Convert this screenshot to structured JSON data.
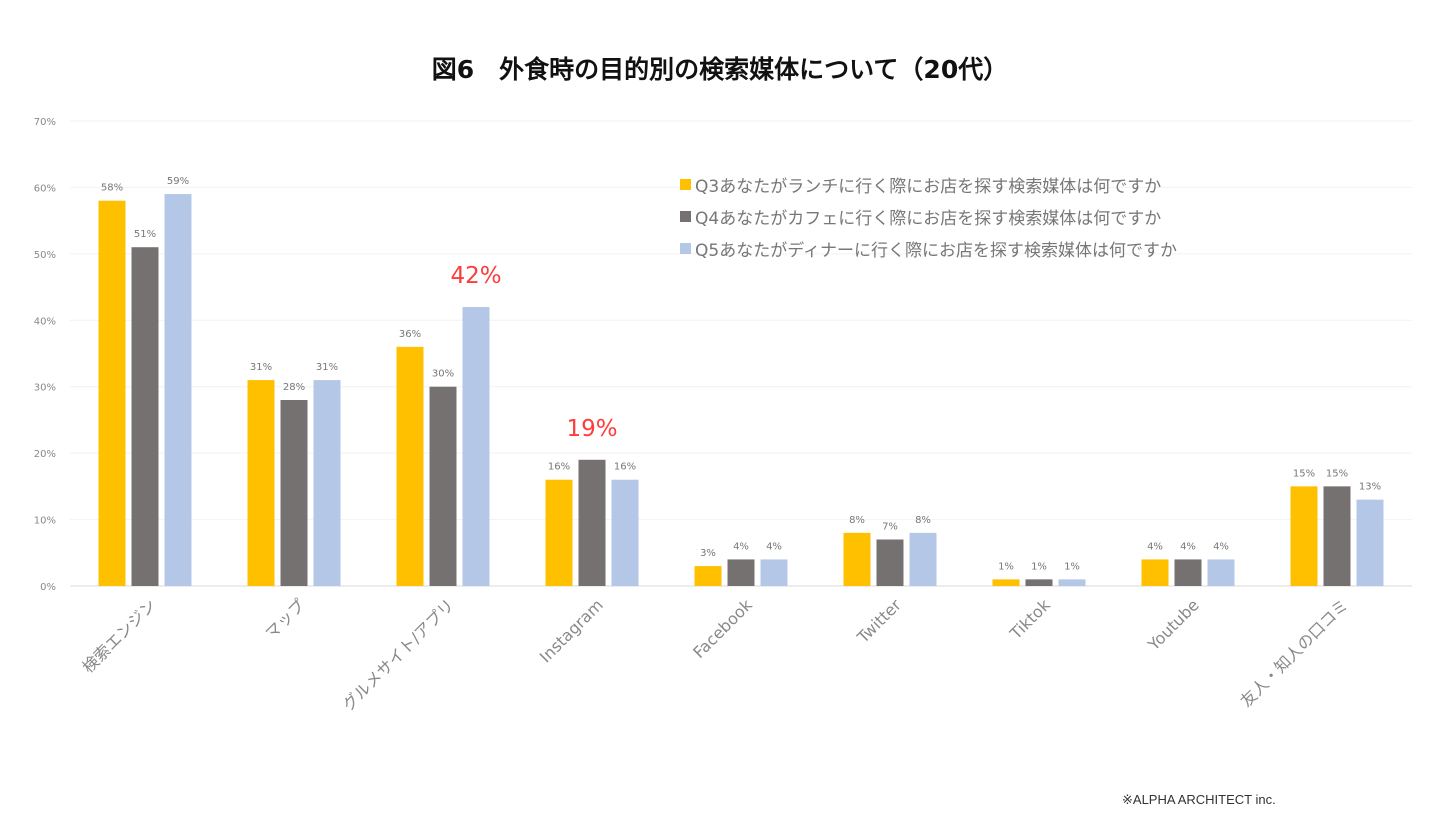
{
  "chart_data": {
    "type": "bar",
    "title": "図6　外食時の目的別の検索媒体について（20代）",
    "xlabel": "",
    "ylabel": "",
    "ylim": [
      0,
      70
    ],
    "yticks": [
      "0%",
      "10%",
      "20%",
      "30%",
      "40%",
      "50%",
      "60%",
      "70%"
    ],
    "grid": true,
    "legend_position": "top-right",
    "categories": [
      "検索エンジン",
      "マップ",
      "グルメサイト/アプリ",
      "Instagram",
      "Facebook",
      "Twitter",
      "Tiktok",
      "Youtube",
      "友人・知人の口コミ"
    ],
    "series": [
      {
        "name": "Q3あなたがランチに行く際にお店を探す検索媒体は何ですか",
        "color": "#FFC000",
        "values": [
          58,
          31,
          36,
          16,
          3,
          8,
          1,
          4,
          15
        ]
      },
      {
        "name": "Q4あなたがカフェに行く際にお店を探す検索媒体は何ですか",
        "color": "#767171",
        "values": [
          51,
          28,
          30,
          19,
          4,
          7,
          1,
          4,
          15
        ]
      },
      {
        "name": "Q5あなたがディナーに行く際にお店を探す検索媒体は何ですか",
        "color": "#B4C7E7",
        "values": [
          59,
          31,
          42,
          16,
          4,
          8,
          1,
          4,
          13
        ]
      }
    ],
    "annotations": [
      {
        "text": "42%",
        "category": "グルメサイト/アプリ",
        "series": 2,
        "color": "#FF3B3B"
      },
      {
        "text": "19%",
        "category": "Instagram",
        "series": 1,
        "color": "#FF3B3B"
      }
    ]
  },
  "credit": "※ALPHA ARCHITECT inc."
}
